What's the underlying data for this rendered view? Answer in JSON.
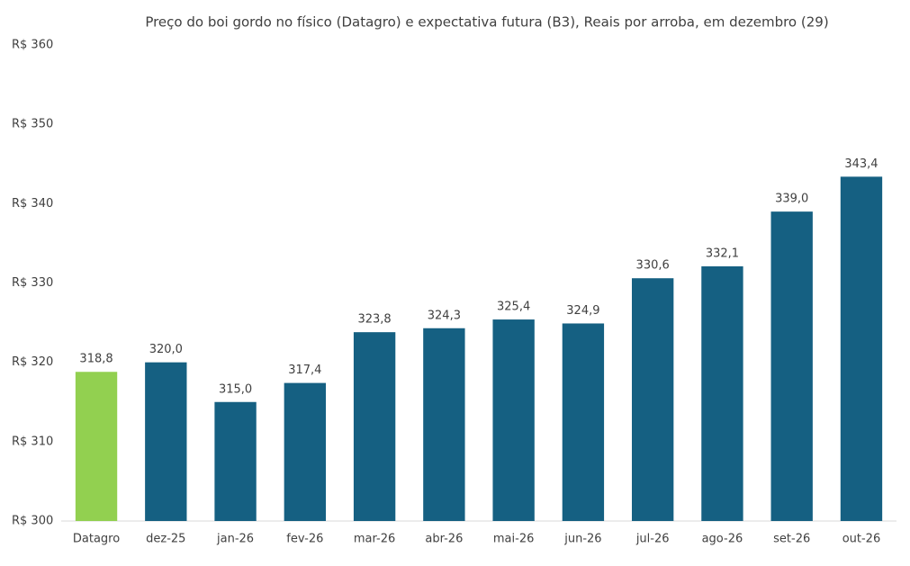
{
  "chart_data": {
    "type": "bar",
    "title": "Preço do boi gordo no físico (Datagro)  e expectativa futura (B3), Reais por arroba, em dezembro (29)",
    "categories": [
      "Datagro",
      "dez-25",
      "jan-26",
      "fev-26",
      "mar-26",
      "abr-26",
      "mai-26",
      "jun-26",
      "jul-26",
      "ago-26",
      "set-26",
      "out-26"
    ],
    "values": [
      318.8,
      320.0,
      315.0,
      317.4,
      323.8,
      324.3,
      325.4,
      324.9,
      330.6,
      332.1,
      339.0,
      343.4
    ],
    "value_labels": [
      "318,8",
      "320,0",
      "315,0",
      "317,4",
      "323,8",
      "324,3",
      "325,4",
      "324,9",
      "330,6",
      "332,1",
      "339,0",
      "343,4"
    ],
    "colors": [
      "#92d050",
      "#156082",
      "#156082",
      "#156082",
      "#156082",
      "#156082",
      "#156082",
      "#156082",
      "#156082",
      "#156082",
      "#156082",
      "#156082"
    ],
    "ylim": [
      300,
      360
    ],
    "yticks": [
      {
        "value": 300,
        "label": "R$ 300"
      },
      {
        "value": 310,
        "label": "R$ 310"
      },
      {
        "value": 320,
        "label": "R$ 320"
      },
      {
        "value": 330,
        "label": "R$ 330"
      },
      {
        "value": 340,
        "label": "R$ 340"
      },
      {
        "value": 350,
        "label": "R$ 350"
      },
      {
        "value": 360,
        "label": "R$ 360"
      }
    ],
    "grid": false
  }
}
